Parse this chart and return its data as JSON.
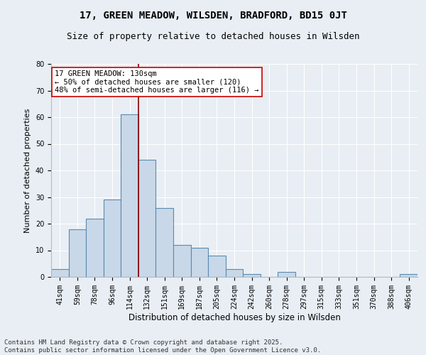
{
  "title": "17, GREEN MEADOW, WILSDEN, BRADFORD, BD15 0JT",
  "subtitle": "Size of property relative to detached houses in Wilsden",
  "xlabel": "Distribution of detached houses by size in Wilsden",
  "ylabel": "Number of detached properties",
  "categories": [
    "41sqm",
    "59sqm",
    "78sqm",
    "96sqm",
    "114sqm",
    "132sqm",
    "151sqm",
    "169sqm",
    "187sqm",
    "205sqm",
    "224sqm",
    "242sqm",
    "260sqm",
    "278sqm",
    "297sqm",
    "315sqm",
    "333sqm",
    "351sqm",
    "370sqm",
    "388sqm",
    "406sqm"
  ],
  "values": [
    3,
    18,
    22,
    29,
    61,
    44,
    26,
    12,
    11,
    8,
    3,
    1,
    0,
    2,
    0,
    0,
    0,
    0,
    0,
    0,
    1
  ],
  "bar_color": "#c8d8e8",
  "bar_edge_color": "#5a8ab0",
  "vline_x": 4.5,
  "vline_color": "#8b0000",
  "annotation_text": "17 GREEN MEADOW: 130sqm\n← 50% of detached houses are smaller (120)\n48% of semi-detached houses are larger (116) →",
  "annotation_box_color": "#ffffff",
  "annotation_box_edge": "#cc0000",
  "ylim": [
    0,
    80
  ],
  "yticks": [
    0,
    10,
    20,
    30,
    40,
    50,
    60,
    70,
    80
  ],
  "background_color": "#e8eef4",
  "footer": "Contains HM Land Registry data © Crown copyright and database right 2025.\nContains public sector information licensed under the Open Government Licence v3.0.",
  "title_fontsize": 10,
  "subtitle_fontsize": 9,
  "xlabel_fontsize": 8.5,
  "ylabel_fontsize": 8,
  "tick_fontsize": 7,
  "footer_fontsize": 6.5,
  "annotation_fontsize": 7.5
}
